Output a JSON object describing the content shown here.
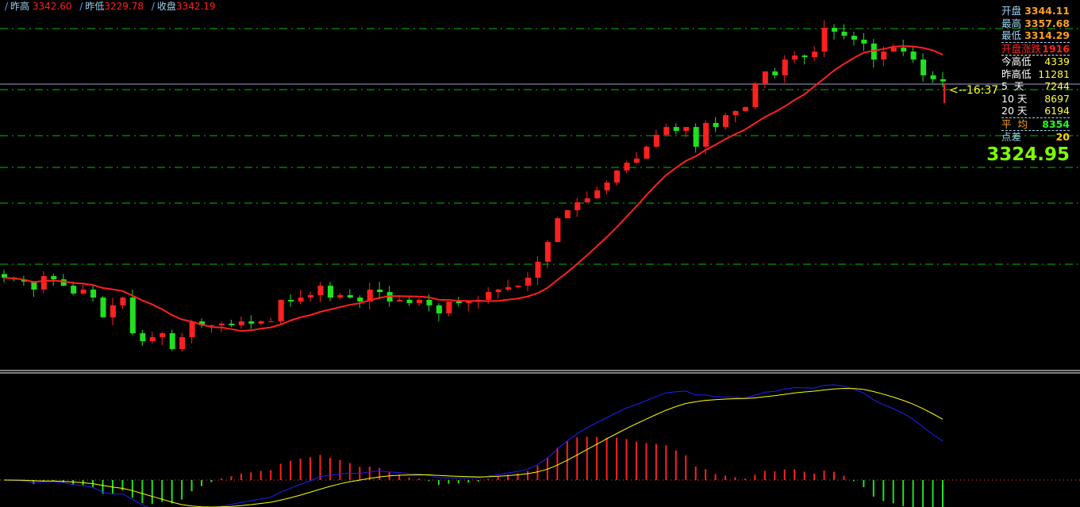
{
  "header": {
    "prev_high_label": "昨高",
    "prev_high": "3342.60",
    "prev_low_label": "昨低",
    "prev_low": "3229.78",
    "close_label": "收盘",
    "close": "3342.19"
  },
  "panel": {
    "open_label": "开盘",
    "open": "3344.11",
    "high_label": "最高",
    "high": "3357.68",
    "low_label": "最低",
    "low": "3314.29",
    "open_change_label": "开盘涨跌",
    "open_change": "1916",
    "today_range_label": "今高低",
    "today_range": "4339",
    "yday_range_label": "昨高低",
    "yday_range": "11281",
    "d5_label": "5  天",
    "d5": "7244",
    "d10_label": "10 天",
    "d10": "8697",
    "d20_label": "20 天",
    "d20": "6194",
    "avg_label": "平  均",
    "avg": "8354",
    "spread_label": "点差",
    "spread": "20",
    "last_price": "3324.95",
    "time_marker": "<--16:37"
  },
  "colors": {
    "up": "#ff2020",
    "down": "#20e020",
    "ma": "#ff2020",
    "dif": "#2020ff",
    "dea": "#ffff00",
    "grid": "#00c000"
  },
  "chart_data": {
    "type": "candlestick",
    "indicators": [
      "moving-average",
      "macd"
    ],
    "first_open": 3231.0,
    "closes": [
      3229.2,
      3228.4,
      3227.3,
      3223.4,
      3230.0,
      3228.4,
      3225.3,
      3221.5,
      3223.4,
      3219.5,
      3209.9,
      3215.7,
      3219.5,
      3202.1,
      3198.2,
      3200.2,
      3202.1,
      3194.4,
      3200.2,
      3207.9,
      3206.0,
      3206.0,
      3206.8,
      3206.0,
      3207.9,
      3206.8,
      3207.9,
      3207.9,
      3218.4,
      3217.6,
      3219.5,
      3220.7,
      3225.3,
      3219.5,
      3220.7,
      3219.5,
      3217.6,
      3223.4,
      3222.2,
      3217.6,
      3218.4,
      3216.8,
      3218.4,
      3215.7,
      3211.8,
      3217.6,
      3216.8,
      3217.6,
      3218.4,
      3222.2,
      3223.4,
      3224.6,
      3225.3,
      3229.2,
      3237.0,
      3246.6,
      3258.2,
      3262.1,
      3266.0,
      3267.9,
      3271.8,
      3275.6,
      3281.5,
      3285.3,
      3287.3,
      3293.1,
      3298.9,
      3302.7,
      3300.8,
      3302.7,
      3293.1,
      3304.7,
      3302.7,
      3308.5,
      3310.5,
      3312.4,
      3324.0,
      3329.8,
      3327.9,
      3335.6,
      3337.6,
      3336.8,
      3339.5,
      3351.1,
      3349.2,
      3347.2,
      3345.3,
      3343.4,
      3335.6,
      3339.5,
      3341.4,
      3339.5,
      3335.6,
      3327.9,
      3326.0,
      3324.95
    ]
  }
}
